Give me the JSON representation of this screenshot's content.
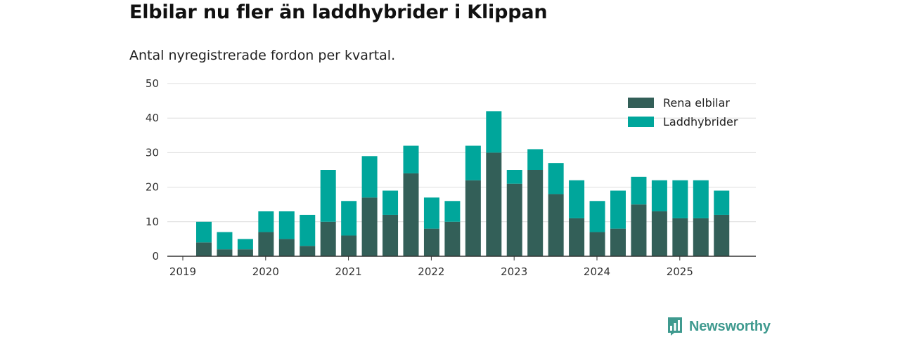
{
  "title": "Elbilar nu fler än laddhybrider i Klippan",
  "subtitle": "Antal nyregistrerade fordon per kvartal.",
  "brand": "Newsworthy",
  "colors": {
    "rena_elbilar": "#335f58",
    "laddhybrider": "#00a69b",
    "grid": "#dddddd",
    "axis": "#333333",
    "brand": "#3f9a8f"
  },
  "chart_data": {
    "type": "bar",
    "stacked": true,
    "categories": [
      "2019 Q2",
      "2019 Q3",
      "2019 Q4",
      "2020 Q1",
      "2020 Q2",
      "2020 Q3",
      "2020 Q4",
      "2021 Q1",
      "2021 Q2",
      "2021 Q3",
      "2021 Q4",
      "2022 Q1",
      "2022 Q2",
      "2022 Q3",
      "2022 Q4",
      "2023 Q1",
      "2023 Q2",
      "2023 Q3",
      "2023 Q4",
      "2024 Q1",
      "2024 Q2",
      "2024 Q3",
      "2024 Q4",
      "2025 Q1",
      "2025 Q2",
      "2025 Q3"
    ],
    "series": [
      {
        "name": "Rena elbilar",
        "values": [
          4,
          2,
          2,
          7,
          5,
          3,
          10,
          6,
          17,
          12,
          24,
          8,
          10,
          22,
          30,
          21,
          25,
          18,
          11,
          7,
          8,
          15,
          13,
          11,
          11,
          12
        ]
      },
      {
        "name": "Laddhybrider",
        "values": [
          6,
          5,
          3,
          6,
          8,
          9,
          15,
          10,
          12,
          7,
          8,
          9,
          6,
          10,
          12,
          4,
          6,
          9,
          11,
          9,
          11,
          8,
          9,
          11,
          11,
          7
        ]
      }
    ],
    "x_tick_labels": [
      "2019",
      "2020",
      "2021",
      "2022",
      "2023",
      "2024",
      "2025"
    ],
    "y_tick_labels": [
      "0",
      "10",
      "20",
      "30",
      "40",
      "50"
    ],
    "ylim": [
      0,
      50
    ],
    "grid": true,
    "legend_position": "top-right"
  }
}
